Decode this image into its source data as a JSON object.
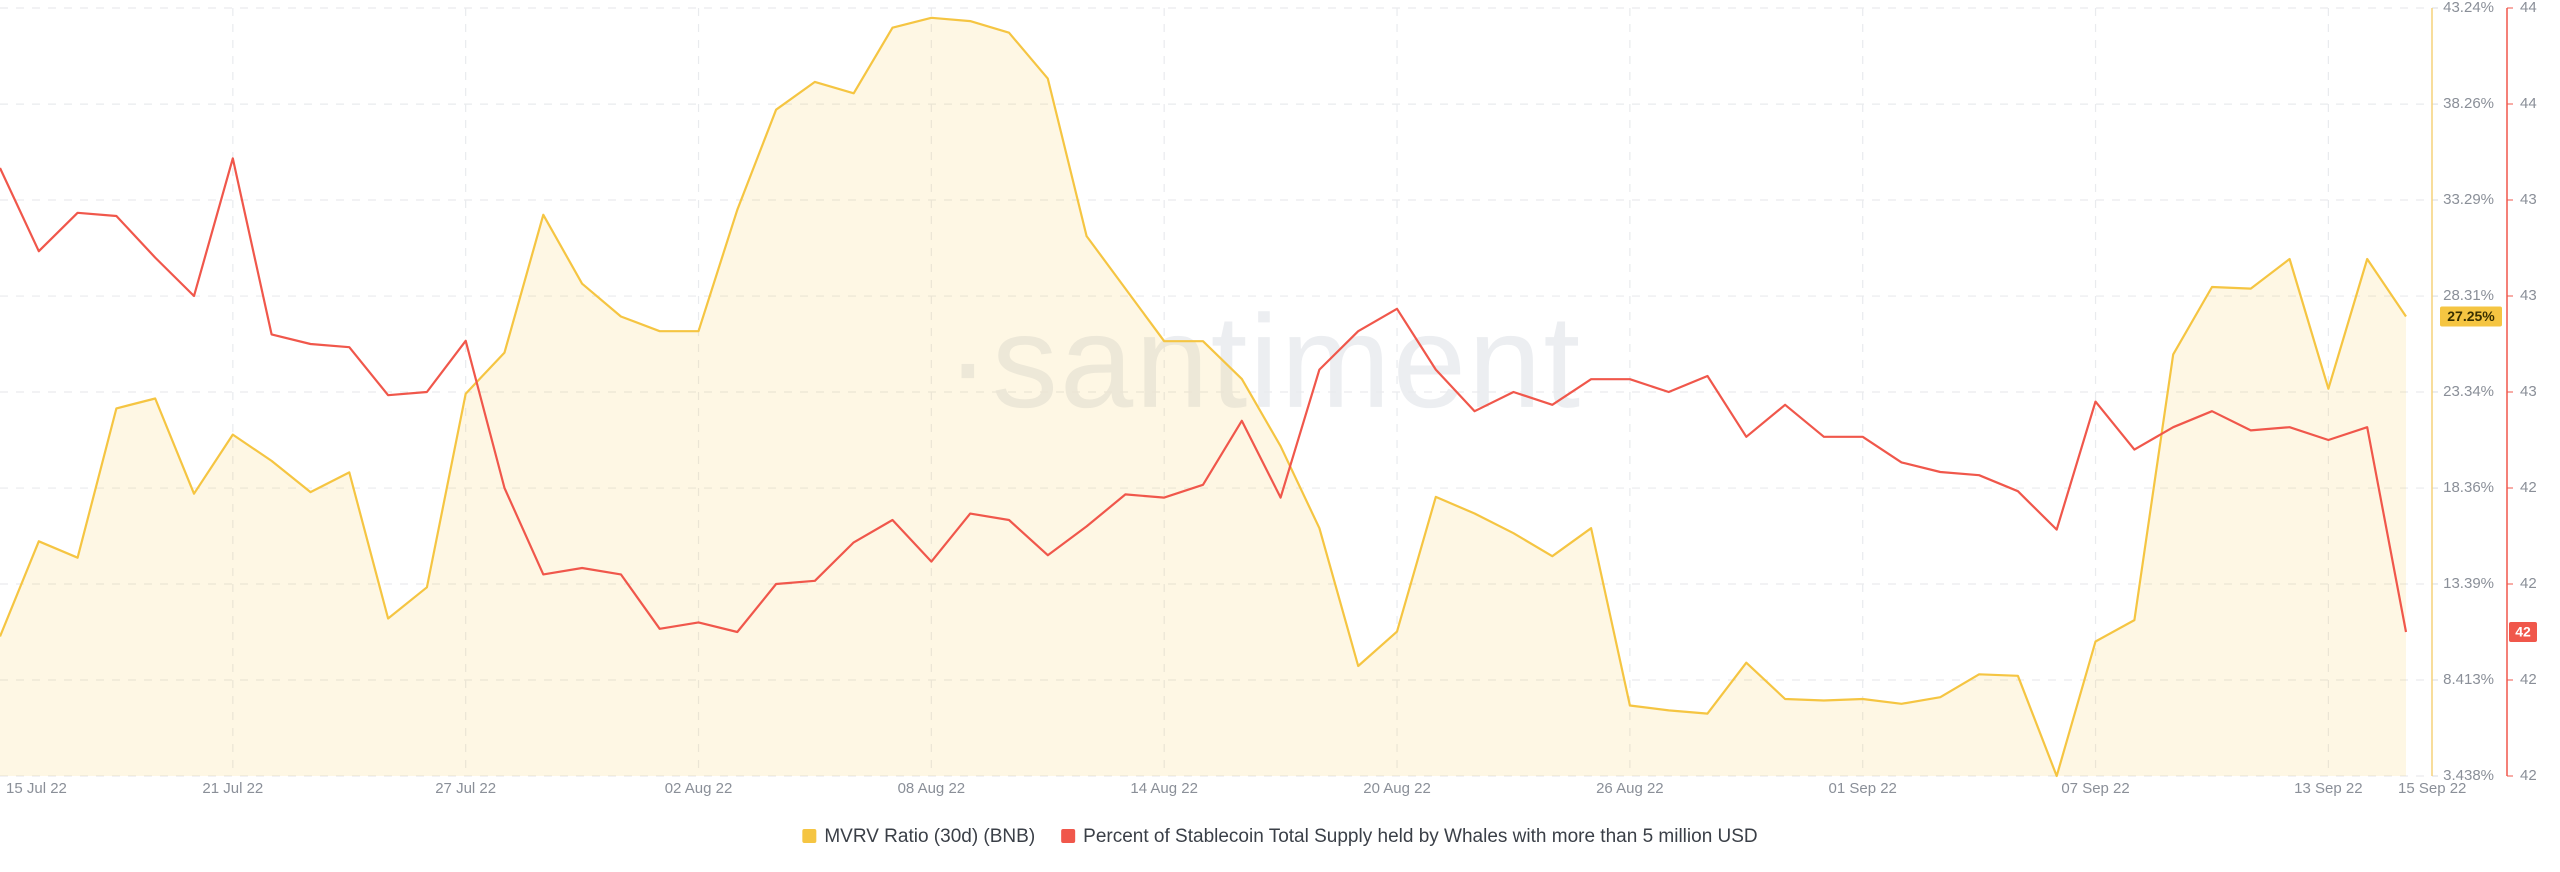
{
  "chart_data": {
    "type": "line",
    "watermark": "·santiment",
    "categories": [
      "15 Jul 22",
      null,
      null,
      null,
      null,
      null,
      "21 Jul 22",
      null,
      null,
      null,
      null,
      null,
      "27 Jul 22",
      null,
      null,
      null,
      null,
      null,
      "02 Aug 22",
      null,
      null,
      null,
      null,
      null,
      "08 Aug 22",
      null,
      null,
      null,
      null,
      null,
      "14 Aug 22",
      null,
      null,
      null,
      null,
      null,
      "20 Aug 22",
      null,
      null,
      null,
      null,
      null,
      "26 Aug 22",
      null,
      null,
      null,
      null,
      null,
      "01 Sep 22",
      null,
      null,
      null,
      null,
      null,
      "07 Sep 22",
      null,
      null,
      null,
      null,
      null,
      "13 Sep 22",
      null,
      "15 Sep 22"
    ],
    "ylim": [
      3.438,
      43.24
    ],
    "yticks": [
      {
        "value": 43.24,
        "label": "43.24%"
      },
      {
        "value": 38.26,
        "label": "38.26%"
      },
      {
        "value": 33.29,
        "label": "33.29%"
      },
      {
        "value": 28.31,
        "label": "28.31%"
      },
      {
        "value": 23.34,
        "label": "23.34%"
      },
      {
        "value": 18.36,
        "label": "18.36%"
      },
      {
        "value": 13.39,
        "label": "13.39%"
      },
      {
        "value": 8.413,
        "label": "8.413%"
      },
      {
        "value": 3.438,
        "label": "3.438%"
      }
    ],
    "y2lim": [
      41.5,
      43.9
    ],
    "y2ticks": [
      {
        "value": 43.9,
        "label": "44"
      },
      {
        "value": 43.6,
        "label": "44"
      },
      {
        "value": 43.3,
        "label": "43"
      },
      {
        "value": 43.0,
        "label": "43"
      },
      {
        "value": 42.7,
        "label": "43"
      },
      {
        "value": 42.4,
        "label": "42"
      },
      {
        "value": 42.1,
        "label": "42"
      },
      {
        "value": 41.8,
        "label": "42"
      },
      {
        "value": 41.5,
        "label": "42"
      }
    ],
    "grid": true,
    "series": [
      {
        "name": "MVRV Ratio (30d) (BNB)",
        "color": "#f5c542",
        "area": true,
        "axis": "y",
        "values": [
          10.67,
          15.6,
          14.75,
          22.49,
          23.0,
          18.07,
          21.13,
          19.77,
          18.15,
          19.17,
          11.6,
          13.22,
          23.25,
          25.38,
          32.52,
          28.95,
          27.25,
          26.49,
          26.49,
          32.78,
          37.97,
          39.41,
          38.82,
          42.22,
          42.73,
          42.56,
          41.96,
          39.58,
          31.42,
          28.7,
          25.97,
          25.97,
          24.02,
          20.53,
          16.28,
          9.14,
          10.92,
          17.9,
          17.04,
          16.02,
          14.83,
          16.28,
          7.09,
          6.84,
          6.67,
          9.31,
          7.43,
          7.35,
          7.43,
          7.18,
          7.52,
          8.71,
          8.63,
          3.44,
          10.41,
          11.52,
          25.29,
          28.78,
          28.7,
          30.23,
          23.51,
          30.23,
          27.25
        ],
        "badge": {
          "value": 27.25,
          "label": "27.25%"
        }
      },
      {
        "name": "Percent of Stablecoin Total Supply held by Whales with more than 5 million USD",
        "color": "#f0574b",
        "area": false,
        "axis": "y2",
        "values": [
          43.4,
          43.14,
          43.26,
          43.25,
          43.12,
          43.0,
          43.43,
          42.88,
          42.85,
          42.84,
          42.69,
          42.7,
          42.86,
          42.4,
          42.13,
          42.15,
          42.13,
          41.96,
          41.98,
          41.95,
          42.1,
          42.11,
          42.23,
          42.3,
          42.17,
          42.32,
          42.3,
          42.19,
          42.28,
          42.38,
          42.37,
          42.41,
          42.61,
          42.37,
          42.77,
          42.89,
          42.96,
          42.77,
          42.64,
          42.7,
          42.66,
          42.74,
          42.74,
          42.7,
          42.75,
          42.56,
          42.66,
          42.56,
          42.56,
          42.48,
          42.45,
          42.44,
          42.39,
          42.27,
          42.67,
          42.52,
          42.59,
          42.64,
          42.58,
          42.59,
          42.55,
          42.59,
          41.95
        ],
        "badge": {
          "value": 41.95,
          "label": "42"
        }
      }
    ]
  }
}
